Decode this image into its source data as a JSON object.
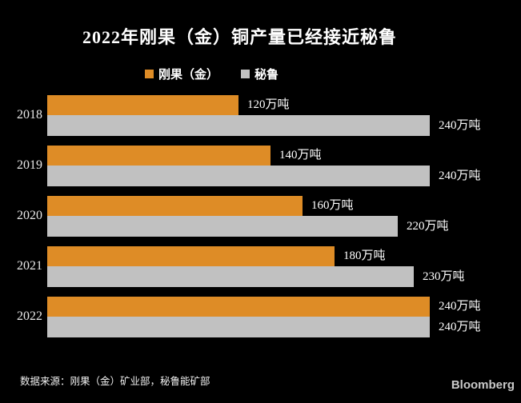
{
  "title": "2022年刚果（金）铜产量已经接近秘鲁",
  "legend": [
    {
      "label": "刚果（金）",
      "color": "#de8c26"
    },
    {
      "label": "秘鲁",
      "color": "#c1c1c1"
    }
  ],
  "chart_data": {
    "type": "bar",
    "orientation": "horizontal",
    "title": "2022年刚果（金）铜产量已经接近秘鲁",
    "unit": "万吨",
    "categories": [
      "2018",
      "2019",
      "2020",
      "2021",
      "2022"
    ],
    "series": [
      {
        "name": "刚果（金）",
        "color": "#de8c26",
        "values": [
          120,
          140,
          160,
          180,
          240
        ],
        "labels": [
          "120万吨",
          "140万吨",
          "160万吨",
          "180万吨",
          "240万吨"
        ]
      },
      {
        "name": "秘鲁",
        "color": "#c1c1c1",
        "values": [
          240,
          240,
          220,
          230,
          240
        ],
        "labels": [
          "240万吨",
          "240万吨",
          "220万吨",
          "230万吨",
          "240万吨"
        ]
      }
    ],
    "xlim": [
      0,
      250
    ],
    "grid": false,
    "legend_position": "top"
  },
  "footer": {
    "source": "数据来源：刚果（金）矿业部，秘鲁能矿部",
    "brand": "Bloomberg"
  },
  "colors": {
    "background": "#000000",
    "congo_bar": "#de8c26",
    "peru_bar": "#c1c1c1",
    "text": "#ffffff",
    "brand_text": "#c9c9c9"
  }
}
